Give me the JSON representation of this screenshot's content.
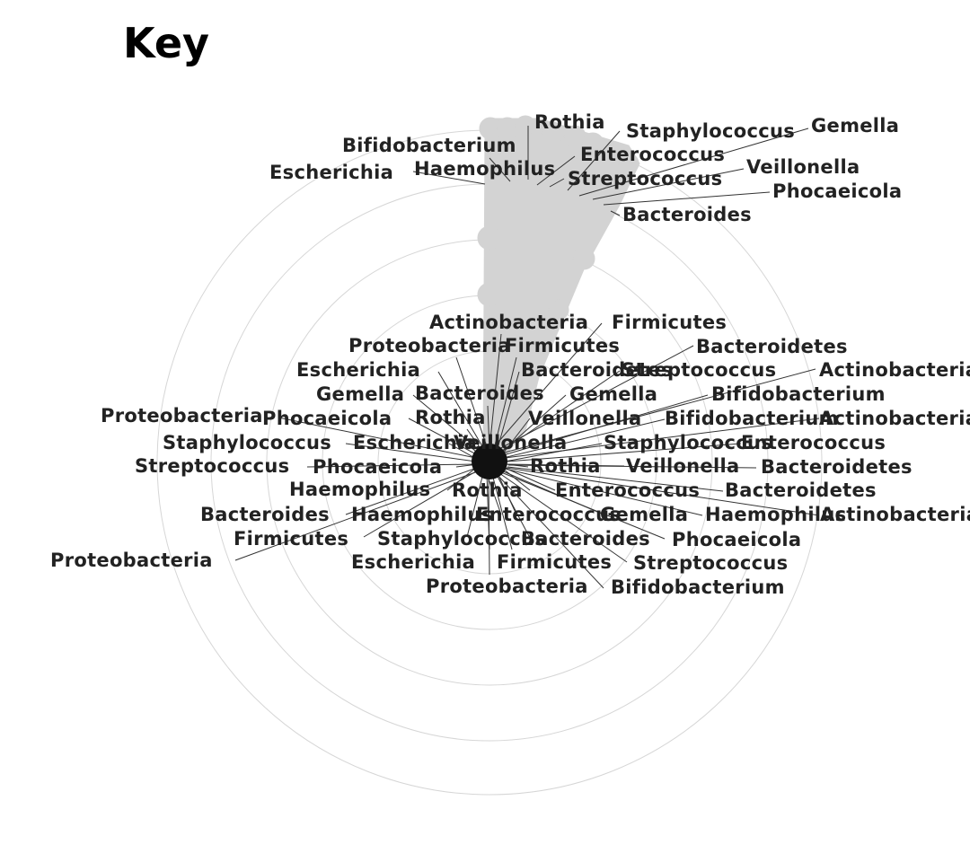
{
  "title": "Key",
  "colors": {
    "node": "#d3d3d3",
    "ring": "#d6d6d6",
    "center": "#111111",
    "label": "#222222",
    "leader": "#333333"
  },
  "labels": {
    "l0": "Rothia",
    "l1": "Staphylococcus",
    "l2": "Gemella",
    "l3": "Bifidobacterium",
    "l4": "Enterococcus",
    "l5": "Escherichia",
    "l6": "Haemophilus",
    "l7": "Veillonella",
    "l8": "Streptococcus",
    "l9": "Phocaeicola",
    "l10": "Bacteroides",
    "l11": "Actinobacteria",
    "l12": "Firmicutes",
    "l13": "Proteobacteria",
    "l14": "Firmicutes",
    "l15": "Bacteroidetes",
    "l16": "Escherichia",
    "l17": "Bacteroidetes",
    "l18": "Streptococcus",
    "l19": "Actinobacteria",
    "l20": "Bacteroides",
    "l21": "Gemella",
    "l22": "Bifidobacterium",
    "l23": "Gemella",
    "l24": "Proteobacteria",
    "l25": "Phocaeicola",
    "l26": "Rothia",
    "l27": "Veillonella",
    "l28": "Bifidobacterium",
    "l29": "Actinobacteria",
    "l30": "Staphylococcus",
    "l31": "Escherichia",
    "l32": "Veillonella",
    "l33": "Staphylococcus",
    "l34": "Enterococcus",
    "l35": "Streptococcus",
    "l36": "Phocaeicola",
    "l37": "Rothia",
    "l38": "Veillonella",
    "l39": "Bacteroidetes",
    "l40": "Haemophilus",
    "l41": "Rothia",
    "l42": "Enterococcus",
    "l43": "Bacteroidetes",
    "l44": "Bacteroides",
    "l45": "Haemophilus",
    "l46": "Enterococcus",
    "l47": "Gemella",
    "l48": "Haemophilus",
    "l49": "Actinobacteria",
    "l50": "Firmicutes",
    "l51": "Staphylococcus",
    "l52": "Bacteroides",
    "l53": "Phocaeicola",
    "l54": "Proteobacteria",
    "l55": "Escherichia",
    "l56": "Firmicutes",
    "l57": "Streptococcus",
    "l58": "Proteobacteria",
    "l59": "Bifidobacterium"
  }
}
